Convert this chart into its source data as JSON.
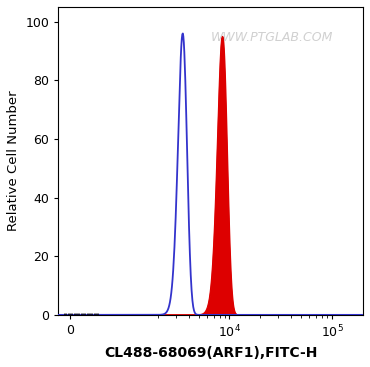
{
  "xlabel": "CL488-68069(ARF1),FITC-H",
  "ylabel": "Relative Cell Number",
  "ylim": [
    0,
    105
  ],
  "yticks": [
    0,
    20,
    40,
    60,
    80,
    100
  ],
  "blue_peak": 3500,
  "blue_sigma": 350,
  "blue_height": 96,
  "red_peak": 8500,
  "red_sigma": 900,
  "red_height": 95,
  "blue_color": "#3333cc",
  "red_color": "#dd0000",
  "watermark": "WWW.PTGLAB.COM",
  "bg_color": "#ffffff",
  "xlabel_fontsize": 10,
  "ylabel_fontsize": 9.5,
  "tick_fontsize": 9,
  "watermark_color": "#c8c8c8",
  "watermark_fontsize": 9,
  "linthresh": 1000,
  "xmin": -200,
  "xmax": 200000
}
